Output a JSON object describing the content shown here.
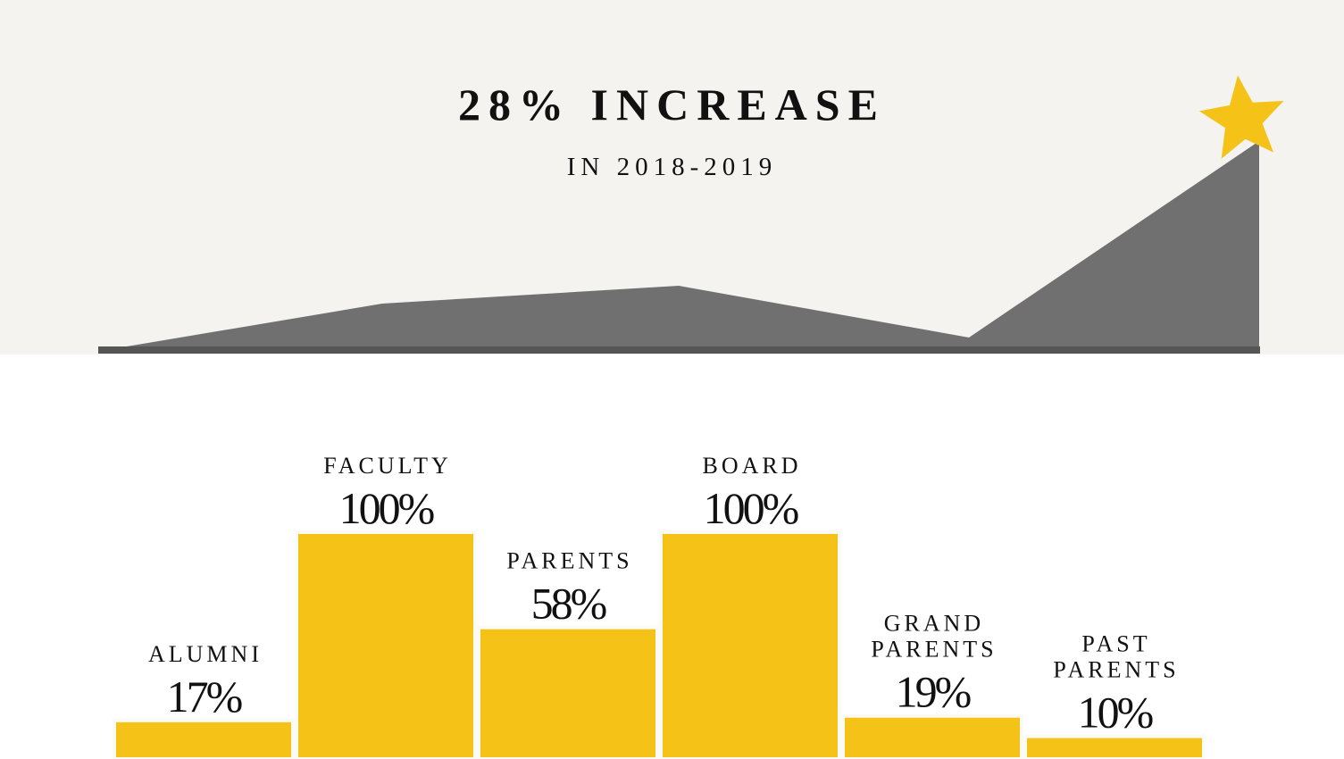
{
  "header": {
    "title": "28% INCREASE",
    "subtitle": "IN 2018-2019"
  },
  "colors": {
    "band_background": "#f4f3ef",
    "trend_fill": "#707070",
    "baseline": "#555555",
    "bar_fill": "#f5c218",
    "star": "#f5c218",
    "text": "#111111"
  },
  "icons": {
    "star": "star-icon"
  },
  "chart_data": [
    {
      "type": "area",
      "x": [
        0,
        1,
        2,
        3,
        4
      ],
      "values": [
        0,
        50,
        70,
        12,
        232
      ],
      "xlabel": "",
      "ylabel": "",
      "grid": false,
      "note_marker": "star at last point"
    },
    {
      "type": "bar",
      "categories": [
        [
          "ALUMNI"
        ],
        [
          "FACULTY"
        ],
        [
          "PARENTS"
        ],
        [
          "BOARD"
        ],
        [
          "GRAND",
          "PARENTS"
        ],
        [
          "PAST",
          "PARENTS"
        ]
      ],
      "values": [
        17,
        100,
        58,
        100,
        19,
        10
      ],
      "value_labels": [
        "17%",
        "100%",
        "58%",
        "100%",
        "19%",
        "10%"
      ],
      "ylim": [
        0,
        100
      ],
      "xlabel": "",
      "ylabel": "",
      "grid": false
    }
  ]
}
